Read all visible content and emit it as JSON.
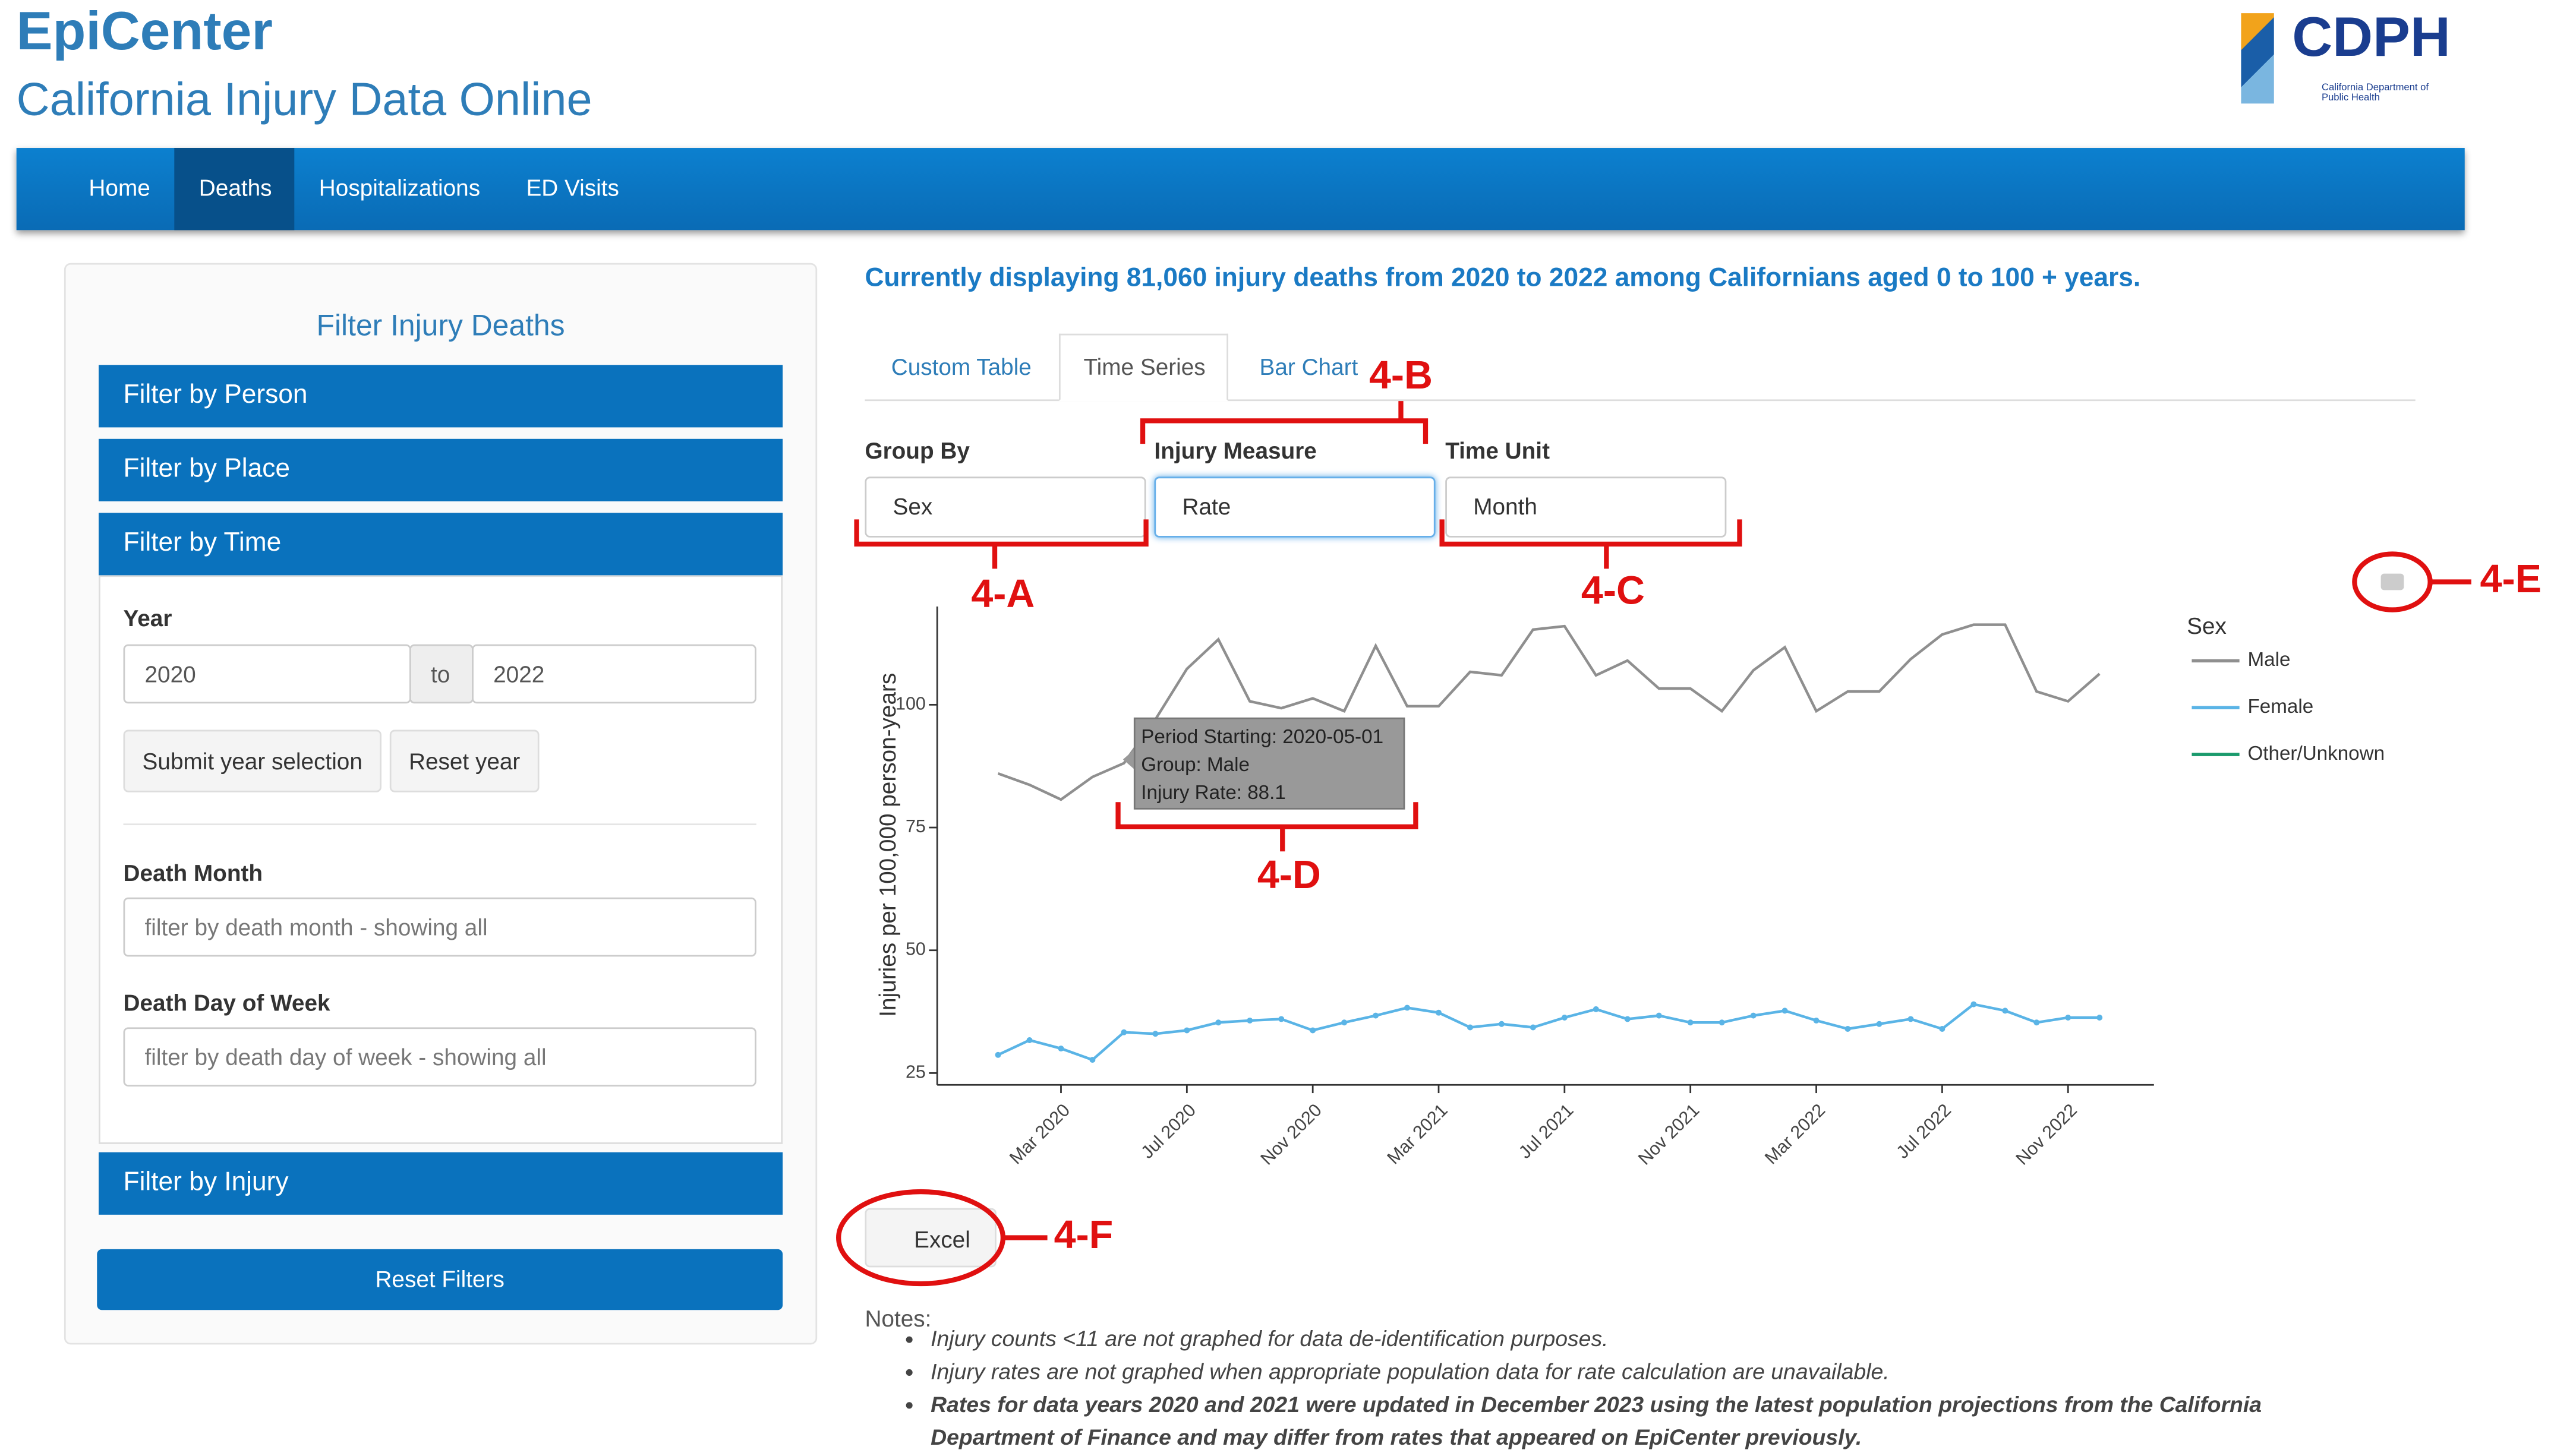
{
  "header": {
    "title": "EpiCenter",
    "subtitle": "California Injury Data Online",
    "logo": "CDPH",
    "logo_sub": "California Department of Public Health"
  },
  "nav": [
    "Home",
    "Deaths",
    "Hospitalizations",
    "ED Visits"
  ],
  "sidebar": {
    "title": "Filter Injury Deaths",
    "sections": [
      "Filter by Person",
      "Filter by Place",
      "Filter by Time"
    ],
    "year_label": "Year",
    "year_from": "2020",
    "year_sep": "to",
    "year_to": "2022",
    "buttons": [
      "Submit year selection",
      "Reset year"
    ],
    "month_label": "Death Month",
    "month_placeholder": "filter by death month - showing all",
    "dow_label": "Death Day of Week",
    "dow_placeholder": "filter by death day of week - showing all",
    "injury_section": "Filter by Injury",
    "reset": "Reset Filters"
  },
  "summary": "Currently displaying 81,060 injury deaths from 2020 to 2022 among Californians aged 0 to 100 + years.",
  "tabs": [
    "Custom Table",
    "Time Series",
    "Bar Chart"
  ],
  "controls": [
    {
      "label": "Group By",
      "value": "Sex"
    },
    {
      "label": "Injury Measure",
      "value": "Rate"
    },
    {
      "label": "Time Unit",
      "value": "Month"
    }
  ],
  "chart_data": {
    "type": "line",
    "y_label": "Injuries per 100,000 person-years",
    "legend_title": "Sex",
    "x": [
      "2020-01",
      "2020-02",
      "2020-03",
      "2020-04",
      "2020-05",
      "2020-06",
      "2020-07",
      "2020-08",
      "2020-09",
      "2020-10",
      "2020-11",
      "2020-12",
      "2021-01",
      "2021-02",
      "2021-03",
      "2021-04",
      "2021-05",
      "2021-06",
      "2021-07",
      "2021-08",
      "2021-09",
      "2021-10",
      "2021-11",
      "2021-12",
      "2022-01",
      "2022-02",
      "2022-03",
      "2022-04",
      "2022-05",
      "2022-06",
      "2022-07",
      "2022-08",
      "2022-09",
      "2022-10",
      "2022-11",
      "2022-12"
    ],
    "series": [
      {
        "name": "Male",
        "color": "#8f8f8f",
        "values": [
          86,
          83.7,
          80.7,
          85.3,
          88.1,
          97,
          107.3,
          113.3,
          100.7,
          99.3,
          101.3,
          98.7,
          112,
          99.7,
          99.7,
          106.7,
          106,
          115.3,
          116,
          106,
          109,
          103.3,
          103.3,
          98.7,
          107,
          111.7,
          98.7,
          102.7,
          102.7,
          109.3,
          114.3,
          116.3,
          116.3,
          102.7,
          100.7,
          106.3
        ]
      },
      {
        "name": "Female",
        "color": "#5ab4e6",
        "values": [
          28.7,
          31.7,
          30,
          27.7,
          33.3,
          33,
          33.7,
          35.3,
          35.7,
          36,
          33.7,
          35.3,
          36.7,
          38.3,
          37.3,
          34.3,
          35,
          34.3,
          36.3,
          38,
          36,
          36.7,
          35.3,
          35.3,
          36.7,
          37.7,
          35.7,
          34,
          35,
          36,
          34,
          39,
          37.7,
          35.3,
          36.3,
          36.3
        ]
      },
      {
        "name": "Other/Unknown",
        "color": "#1a9a6c",
        "values": [
          null,
          null,
          null,
          null,
          null,
          null,
          null,
          null,
          null,
          null,
          null,
          null,
          null,
          null,
          null,
          null,
          null,
          null,
          null,
          null,
          null,
          null,
          null,
          null,
          null,
          null,
          null,
          null,
          null,
          null,
          null,
          null,
          null,
          null,
          null,
          null
        ]
      }
    ],
    "ylim": [
      22.6,
      120
    ],
    "yticks": [
      25,
      50,
      75,
      100
    ],
    "xticks": [
      {
        "value": "2020-03",
        "label": "Mar 2020"
      },
      {
        "value": "2020-07",
        "label": "Jul 2020"
      },
      {
        "value": "2020-11",
        "label": "Nov 2020"
      },
      {
        "value": "2021-03",
        "label": "Mar 2021"
      },
      {
        "value": "2021-07",
        "label": "Jul 2021"
      },
      {
        "value": "2021-11",
        "label": "Nov 2021"
      },
      {
        "value": "2022-03",
        "label": "Mar 2022"
      },
      {
        "value": "2022-07",
        "label": "Jul 2022"
      },
      {
        "value": "2022-11",
        "label": "Nov 2022"
      }
    ],
    "tooltip": [
      "Period Starting: 2020-05-01",
      "Group: Male",
      "Injury Rate: 88.1"
    ]
  },
  "excel": "Excel",
  "notes": {
    "title": "Notes:",
    "items": [
      "Injury counts <11 are not graphed for data de-identification purposes.",
      "Injury rates are not graphed when appropriate population data for rate calculation are unavailable.",
      "Rates for data years 2020 and 2021 were updated in December 2023 using the latest population projections from the California Department of Finance and may differ from rates that appeared on EpiCenter previously."
    ]
  },
  "annotations": [
    "4-A",
    "4-B",
    "4-C",
    "4-D",
    "4-E",
    "4-F"
  ]
}
